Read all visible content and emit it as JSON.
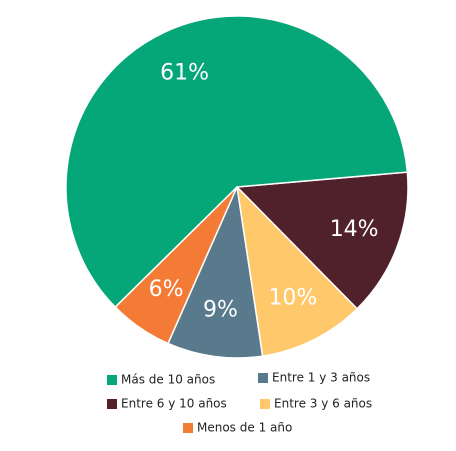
{
  "chart_data": {
    "type": "pie",
    "categories": [
      "Más de 10 años",
      "Entre 1 y 3 años",
      "Entre 6 y 10 años",
      "Entre 3 y 6 años",
      "Menos de 1 año"
    ],
    "values": [
      61,
      9,
      14,
      10,
      6
    ],
    "value_labels": [
      "61%",
      "9%",
      "14%",
      "10%",
      "6%"
    ],
    "colors": [
      "#05a678",
      "#587a8c",
      "#50202b",
      "#fec86b",
      "#f47b35"
    ]
  }
}
